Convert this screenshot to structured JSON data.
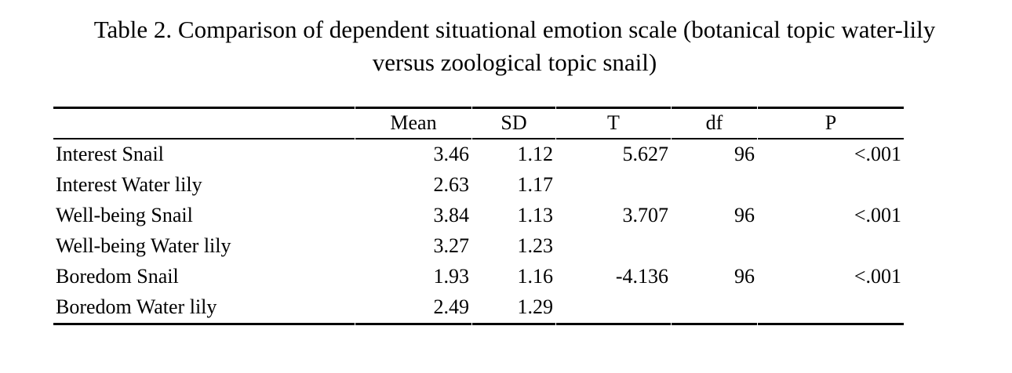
{
  "title": {
    "line1": "Table 2. Comparison of dependent situational emotion scale (botanical topic water-lily",
    "line2": "versus zoological topic snail)"
  },
  "table": {
    "columns": [
      "",
      "Mean",
      "SD",
      "T",
      "df",
      "P"
    ],
    "rows": [
      {
        "label": "Interest Snail",
        "mean": "3.46",
        "sd": "1.12",
        "t": "5.627",
        "df": "96",
        "p": "<.001"
      },
      {
        "label": "Interest Water lily",
        "mean": "2.63",
        "sd": "1.17",
        "t": "",
        "df": "",
        "p": ""
      },
      {
        "label": "Well-being Snail",
        "mean": "3.84",
        "sd": "1.13",
        "t": "3.707",
        "df": "96",
        "p": "<.001"
      },
      {
        "label": "Well-being Water lily",
        "mean": "3.27",
        "sd": "1.23",
        "t": "",
        "df": "",
        "p": ""
      },
      {
        "label": "Boredom Snail",
        "mean": "1.93",
        "sd": "1.16",
        "t": "-4.136",
        "df": "96",
        "p": "<.001"
      },
      {
        "label": "Boredom Water lily",
        "mean": "2.49",
        "sd": "1.29",
        "t": "",
        "df": "",
        "p": ""
      }
    ]
  },
  "colors": {
    "text": "#000000",
    "background": "#ffffff",
    "rule": "#000000"
  }
}
